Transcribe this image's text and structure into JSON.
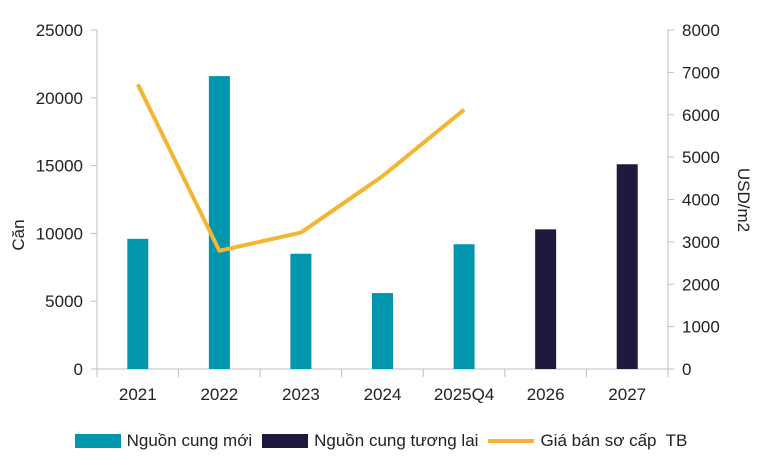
{
  "chart_data": {
    "type": "bar",
    "categories": [
      "2021",
      "2022",
      "2023",
      "2024",
      "2025Q4",
      "2026",
      "2027"
    ],
    "series": [
      {
        "name": "Nguồn cung mới",
        "type": "bar",
        "axis": "left",
        "color": "#0097AE",
        "values": [
          9600,
          21600,
          8500,
          5600,
          9200,
          null,
          null
        ]
      },
      {
        "name": "Nguồn cung tương lai",
        "type": "bar",
        "axis": "left",
        "color": "#1E1A3E",
        "values": [
          null,
          null,
          null,
          null,
          null,
          10300,
          15100
        ]
      },
      {
        "name": "Giá bán sơ cấp  TB",
        "type": "line",
        "axis": "right",
        "color": "#F2B632",
        "values": [
          6720,
          2790,
          3220,
          4550,
          6120,
          null,
          null
        ]
      }
    ],
    "ylabel": "Căn",
    "y2label": "USD/m2",
    "ylim": [
      0,
      25000
    ],
    "y2lim": [
      0,
      8000
    ],
    "yticks": [
      "0",
      "5000",
      "10000",
      "15000",
      "20000",
      "25000"
    ],
    "y2ticks": [
      "0",
      "1000",
      "2000",
      "3000",
      "4000",
      "5000",
      "6000",
      "7000",
      "8000"
    ],
    "grid": false,
    "legend_position": "bottom"
  }
}
